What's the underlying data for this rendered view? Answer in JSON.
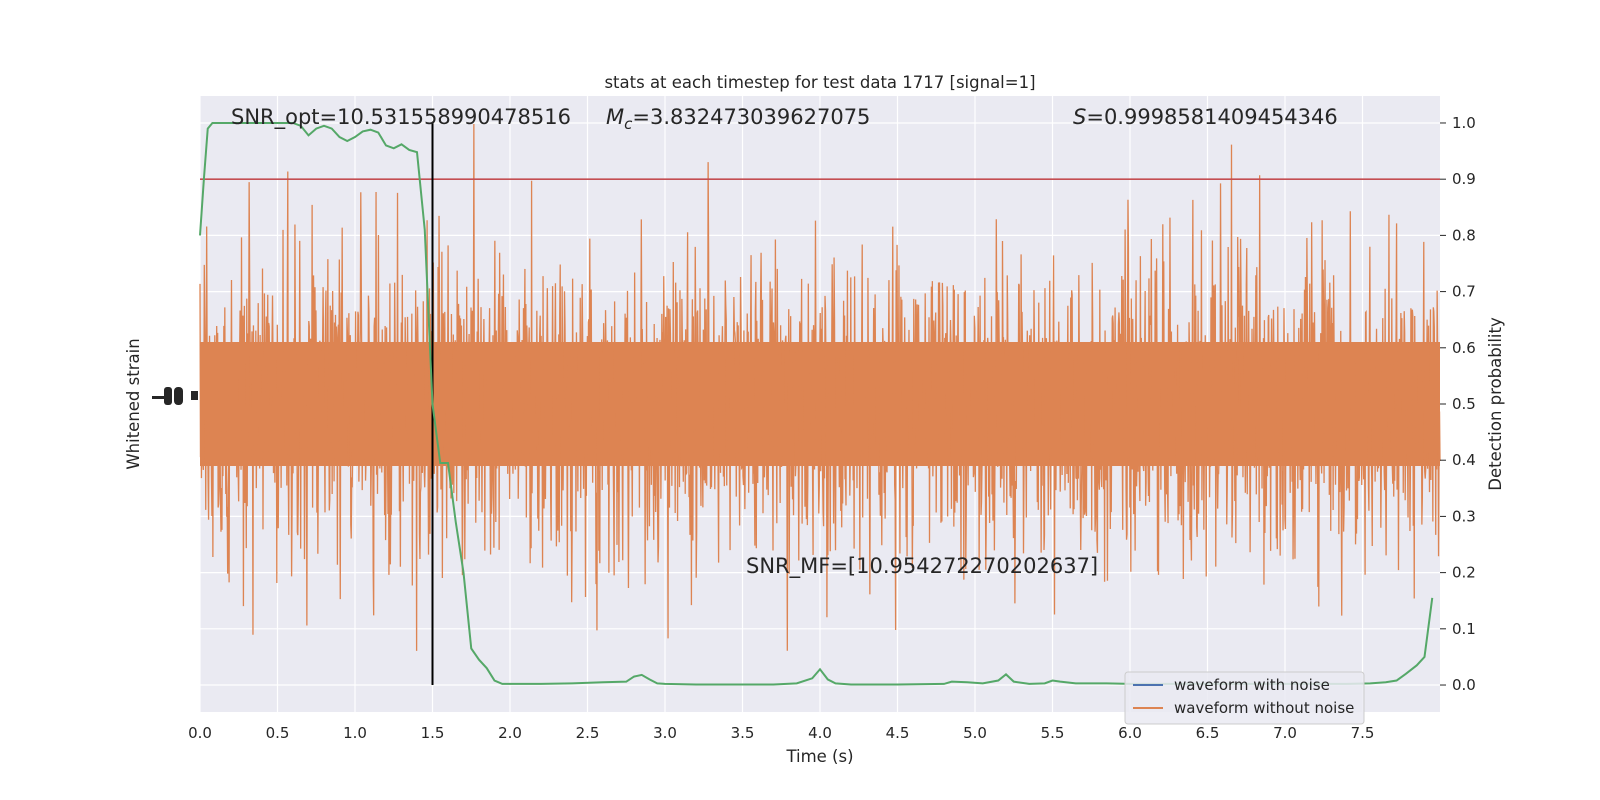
{
  "colors": {
    "plot_background": "#EAEAF2",
    "grid": "#FFFFFF",
    "noise_waveform": "#DD8452",
    "clean_waveform": "#4C72B0",
    "probability": "#55A868",
    "threshold": "#C44E52",
    "marker_line": "#000000"
  },
  "chart_data": {
    "type": "line",
    "title": "stats at each timestep for test data 1717 [signal=1]",
    "xlabel": "Time (s)",
    "ylabel_left": "Whitened strain",
    "ylabel_right": "Detection probability",
    "xlim": [
      0,
      8
    ],
    "ylim_right": [
      -0.048,
      1.048
    ],
    "grid": true,
    "x_ticks": [
      "0.0",
      "0.5",
      "1.0",
      "1.5",
      "2.0",
      "2.5",
      "3.0",
      "3.5",
      "4.0",
      "4.5",
      "5.0",
      "5.5",
      "6.0",
      "6.5",
      "7.0",
      "7.5"
    ],
    "y_ticks_right": [
      "0.0",
      "0.1",
      "0.2",
      "0.3",
      "0.4",
      "0.5",
      "0.6",
      "0.7",
      "0.8",
      "0.9",
      "1.0"
    ],
    "legend": {
      "position": "lower-right",
      "entries": [
        "waveform with noise",
        "waveform without noise"
      ]
    },
    "annotations": {
      "snr_opt": "SNR_opt=10.531558990478516",
      "mc_symbol": "M",
      "mc_subscript": "c",
      "mc_value": "=3.832473039627075",
      "s_symbol": "S",
      "s_value": "=0.9998581409454346",
      "snr_mf": "SNR_MF=[10.954272270202637]"
    },
    "threshold": 0.9,
    "event_time": 1.5,
    "series": [
      {
        "name": "waveform with noise",
        "style": "dense oscillating noise trace on left (strain) axis"
      },
      {
        "name": "waveform without noise",
        "style": "dense oscillating noise trace on left (strain) axis"
      },
      {
        "style": "detection probability on right axis",
        "x": [
          0,
          0.025,
          0.05,
          0.08,
          0.12,
          0.2,
          0.3,
          0.4,
          0.5,
          0.55,
          0.6,
          0.65,
          0.7,
          0.75,
          0.8,
          0.85,
          0.9,
          0.95,
          1.0,
          1.05,
          1.1,
          1.15,
          1.2,
          1.25,
          1.3,
          1.35,
          1.4,
          1.45,
          1.5,
          1.55,
          1.6,
          1.65,
          1.7,
          1.75,
          1.8,
          1.85,
          1.9,
          1.95,
          2.0,
          2.05,
          2.1,
          2.15,
          2.2,
          2.4,
          2.6,
          2.75,
          2.8,
          2.85,
          2.9,
          2.95,
          3.0,
          3.2,
          3.5,
          3.7,
          3.85,
          3.95,
          4.0,
          4.05,
          4.1,
          4.2,
          4.5,
          4.8,
          4.85,
          4.95,
          5.05,
          5.15,
          5.2,
          5.25,
          5.35,
          5.45,
          5.5,
          5.55,
          5.65,
          5.75,
          5.85,
          6.0,
          6.2,
          6.5,
          6.8,
          7.0,
          7.2,
          7.4,
          7.55,
          7.65,
          7.72,
          7.78,
          7.85,
          7.9,
          7.95
        ],
        "y": [
          0.8,
          0.9,
          0.99,
          1.0,
          1.0,
          1.0,
          1.0,
          1.0,
          1.0,
          1.0,
          1.0,
          0.995,
          0.978,
          0.99,
          0.995,
          0.99,
          0.975,
          0.968,
          0.975,
          0.985,
          0.988,
          0.983,
          0.96,
          0.955,
          0.962,
          0.952,
          0.948,
          0.81,
          0.5,
          0.395,
          0.395,
          0.29,
          0.2,
          0.065,
          0.045,
          0.03,
          0.008,
          0.002,
          0.002,
          0.002,
          0.002,
          0.002,
          0.002,
          0.003,
          0.005,
          0.006,
          0.015,
          0.018,
          0.01,
          0.003,
          0.002,
          0.001,
          0.001,
          0.001,
          0.003,
          0.012,
          0.028,
          0.01,
          0.003,
          0.001,
          0.001,
          0.002,
          0.006,
          0.005,
          0.003,
          0.008,
          0.019,
          0.006,
          0.002,
          0.003,
          0.008,
          0.006,
          0.003,
          0.003,
          0.003,
          0.002,
          0.002,
          0.002,
          0.002,
          0.002,
          0.002,
          0.002,
          0.003,
          0.005,
          0.008,
          0.02,
          0.035,
          0.05,
          0.155
        ]
      }
    ]
  }
}
